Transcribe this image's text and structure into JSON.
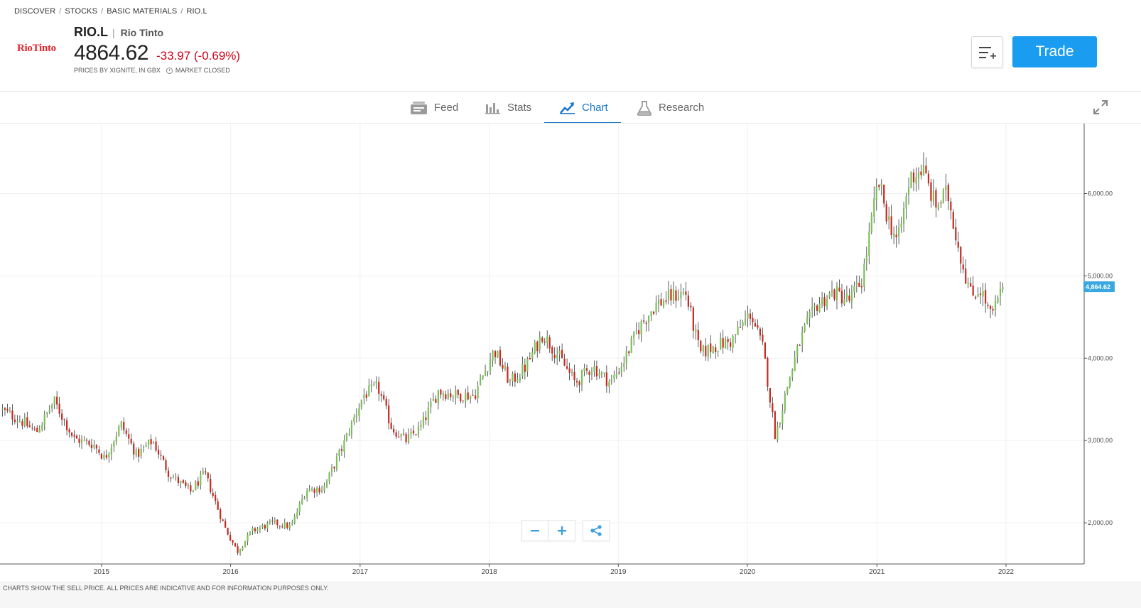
{
  "breadcrumb": [
    "DISCOVER",
    "STOCKS",
    "BASIC MATERIALS",
    "RIO.L"
  ],
  "instrument": {
    "logo_text": "RioTinto",
    "ticker": "RIO.L",
    "separator": "|",
    "company": "Rio Tinto",
    "price": "4864.62",
    "change": "-33.97 (-0.69%)",
    "prices_by": "PRICES BY XIGNITE, IN GBX",
    "market_status": "MARKET CLOSED"
  },
  "actions": {
    "watchlist_icon": "list-plus-icon",
    "trade_label": "Trade"
  },
  "tabs": [
    {
      "label": "Feed",
      "icon": "feed-icon",
      "active": false
    },
    {
      "label": "Stats",
      "icon": "bar-chart-icon",
      "active": false
    },
    {
      "label": "Chart",
      "icon": "chart-trend-icon",
      "active": true
    },
    {
      "label": "Research",
      "icon": "flask-icon",
      "active": false
    }
  ],
  "colors": {
    "up": "#7cbf5a",
    "down": "#c8281e",
    "accent": "#1b78c8",
    "trade": "#1a9cf0",
    "price_label": "#3aa8e0"
  },
  "chart_data": {
    "type": "candlestick",
    "y_ticks": [
      "6,000.00",
      "5,000.00",
      "4,000.00",
      "3,000.00",
      "2,000.00"
    ],
    "y_tick_values": [
      6000,
      5000,
      4000,
      3000,
      2000
    ],
    "x_ticks": [
      "2015",
      "2016",
      "2017",
      "2018",
      "2019",
      "2020",
      "2021",
      "2022"
    ],
    "x_tick_values": [
      "2015-01-01",
      "2016-01-01",
      "2017-01-01",
      "2018-01-01",
      "2019-01-01",
      "2020-01-01",
      "2021-01-01",
      "2022-01-01"
    ],
    "ylim": [
      1500,
      6850
    ],
    "xlim": [
      "2014-03-20",
      "2022-08-10"
    ],
    "last_price": 4864.62,
    "last_price_label": "4,864.62",
    "close_series": [
      {
        "date": "2014-03-20",
        "close": 3380
      },
      {
        "date": "2014-05-15",
        "close": 3250
      },
      {
        "date": "2014-07-01",
        "close": 3100
      },
      {
        "date": "2014-08-20",
        "close": 3480
      },
      {
        "date": "2014-10-15",
        "close": 3020
      },
      {
        "date": "2014-12-10",
        "close": 2950
      },
      {
        "date": "2015-01-10",
        "close": 2780
      },
      {
        "date": "2015-02-25",
        "close": 3200
      },
      {
        "date": "2015-04-10",
        "close": 2820
      },
      {
        "date": "2015-05-25",
        "close": 3000
      },
      {
        "date": "2015-07-10",
        "close": 2600
      },
      {
        "date": "2015-09-10",
        "close": 2380
      },
      {
        "date": "2015-10-20",
        "close": 2600
      },
      {
        "date": "2015-12-15",
        "close": 1950
      },
      {
        "date": "2016-01-20",
        "close": 1650
      },
      {
        "date": "2016-03-01",
        "close": 1900
      },
      {
        "date": "2016-05-01",
        "close": 2000
      },
      {
        "date": "2016-06-20",
        "close": 1950
      },
      {
        "date": "2016-08-01",
        "close": 2400
      },
      {
        "date": "2016-09-20",
        "close": 2420
      },
      {
        "date": "2016-11-15",
        "close": 2950
      },
      {
        "date": "2017-01-10",
        "close": 3550
      },
      {
        "date": "2017-02-20",
        "close": 3650
      },
      {
        "date": "2017-04-01",
        "close": 3150
      },
      {
        "date": "2017-05-10",
        "close": 3000
      },
      {
        "date": "2017-06-20",
        "close": 3150
      },
      {
        "date": "2017-08-10",
        "close": 3600
      },
      {
        "date": "2017-10-01",
        "close": 3550
      },
      {
        "date": "2017-11-20",
        "close": 3550
      },
      {
        "date": "2018-01-15",
        "close": 4100
      },
      {
        "date": "2018-03-01",
        "close": 3700
      },
      {
        "date": "2018-04-15",
        "close": 3900
      },
      {
        "date": "2018-06-01",
        "close": 4300
      },
      {
        "date": "2018-07-20",
        "close": 4000
      },
      {
        "date": "2018-09-01",
        "close": 3700
      },
      {
        "date": "2018-10-20",
        "close": 3900
      },
      {
        "date": "2018-12-10",
        "close": 3700
      },
      {
        "date": "2019-01-15",
        "close": 3950
      },
      {
        "date": "2019-02-25",
        "close": 4350
      },
      {
        "date": "2019-04-15",
        "close": 4650
      },
      {
        "date": "2019-06-01",
        "close": 4750
      },
      {
        "date": "2019-07-10",
        "close": 4800
      },
      {
        "date": "2019-08-20",
        "close": 4050
      },
      {
        "date": "2019-10-01",
        "close": 4150
      },
      {
        "date": "2019-11-15",
        "close": 4200
      },
      {
        "date": "2020-01-10",
        "close": 4550
      },
      {
        "date": "2020-02-15",
        "close": 4100
      },
      {
        "date": "2020-03-20",
        "close": 3050
      },
      {
        "date": "2020-04-25",
        "close": 3700
      },
      {
        "date": "2020-06-01",
        "close": 4250
      },
      {
        "date": "2020-07-15",
        "close": 4650
      },
      {
        "date": "2020-09-01",
        "close": 4800
      },
      {
        "date": "2020-10-15",
        "close": 4700
      },
      {
        "date": "2020-11-20",
        "close": 4950
      },
      {
        "date": "2021-01-05",
        "close": 6150
      },
      {
        "date": "2021-02-01",
        "close": 5700
      },
      {
        "date": "2021-03-01",
        "close": 5400
      },
      {
        "date": "2021-04-05",
        "close": 6200
      },
      {
        "date": "2021-05-10",
        "close": 6300
      },
      {
        "date": "2021-06-15",
        "close": 5850
      },
      {
        "date": "2021-07-20",
        "close": 6000
      },
      {
        "date": "2021-08-25",
        "close": 5250
      },
      {
        "date": "2021-09-25",
        "close": 4750
      },
      {
        "date": "2021-10-20",
        "close": 4850
      },
      {
        "date": "2021-11-20",
        "close": 4500
      },
      {
        "date": "2021-12-25",
        "close": 4864.62
      }
    ]
  },
  "zoom_controls": {
    "zoom_out_icon": "minus-icon",
    "zoom_in_icon": "plus-icon",
    "share_icon": "share-icon"
  },
  "disclaimer": "CHARTS SHOW THE SELL PRICE. ALL PRICES ARE INDICATIVE AND FOR INFORMATION PURPOSES ONLY."
}
